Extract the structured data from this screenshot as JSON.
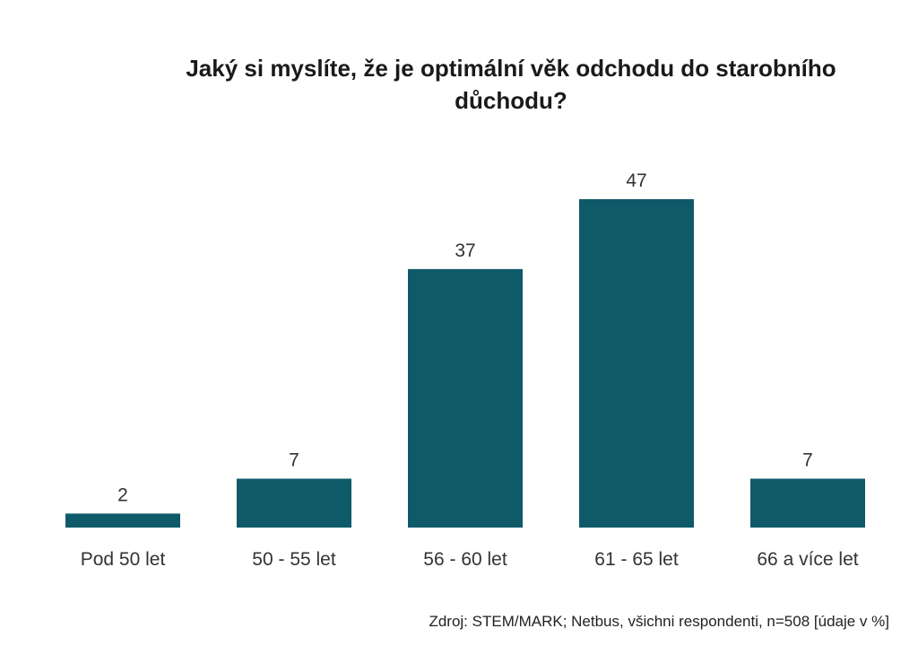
{
  "chart_data": {
    "type": "bar",
    "title": "Jaký si myslíte, že je optimální věk odchodu do starobního důchodu?",
    "categories": [
      "Pod 50 let",
      "50 - 55 let",
      "56 - 60 let",
      "61 - 65 let",
      "66 a více let"
    ],
    "values": [
      2,
      7,
      37,
      47,
      7
    ],
    "value_labels": [
      "2",
      "7",
      "37",
      "47",
      "7"
    ],
    "xlabel": "",
    "ylabel": "",
    "ylim": [
      0,
      47
    ],
    "grid": false,
    "legend": "none",
    "bar_color": "#0e5a69",
    "source": "Zdroj: STEM/MARK; Netbus, všichni respondenti, n=508 [údaje v %]"
  }
}
